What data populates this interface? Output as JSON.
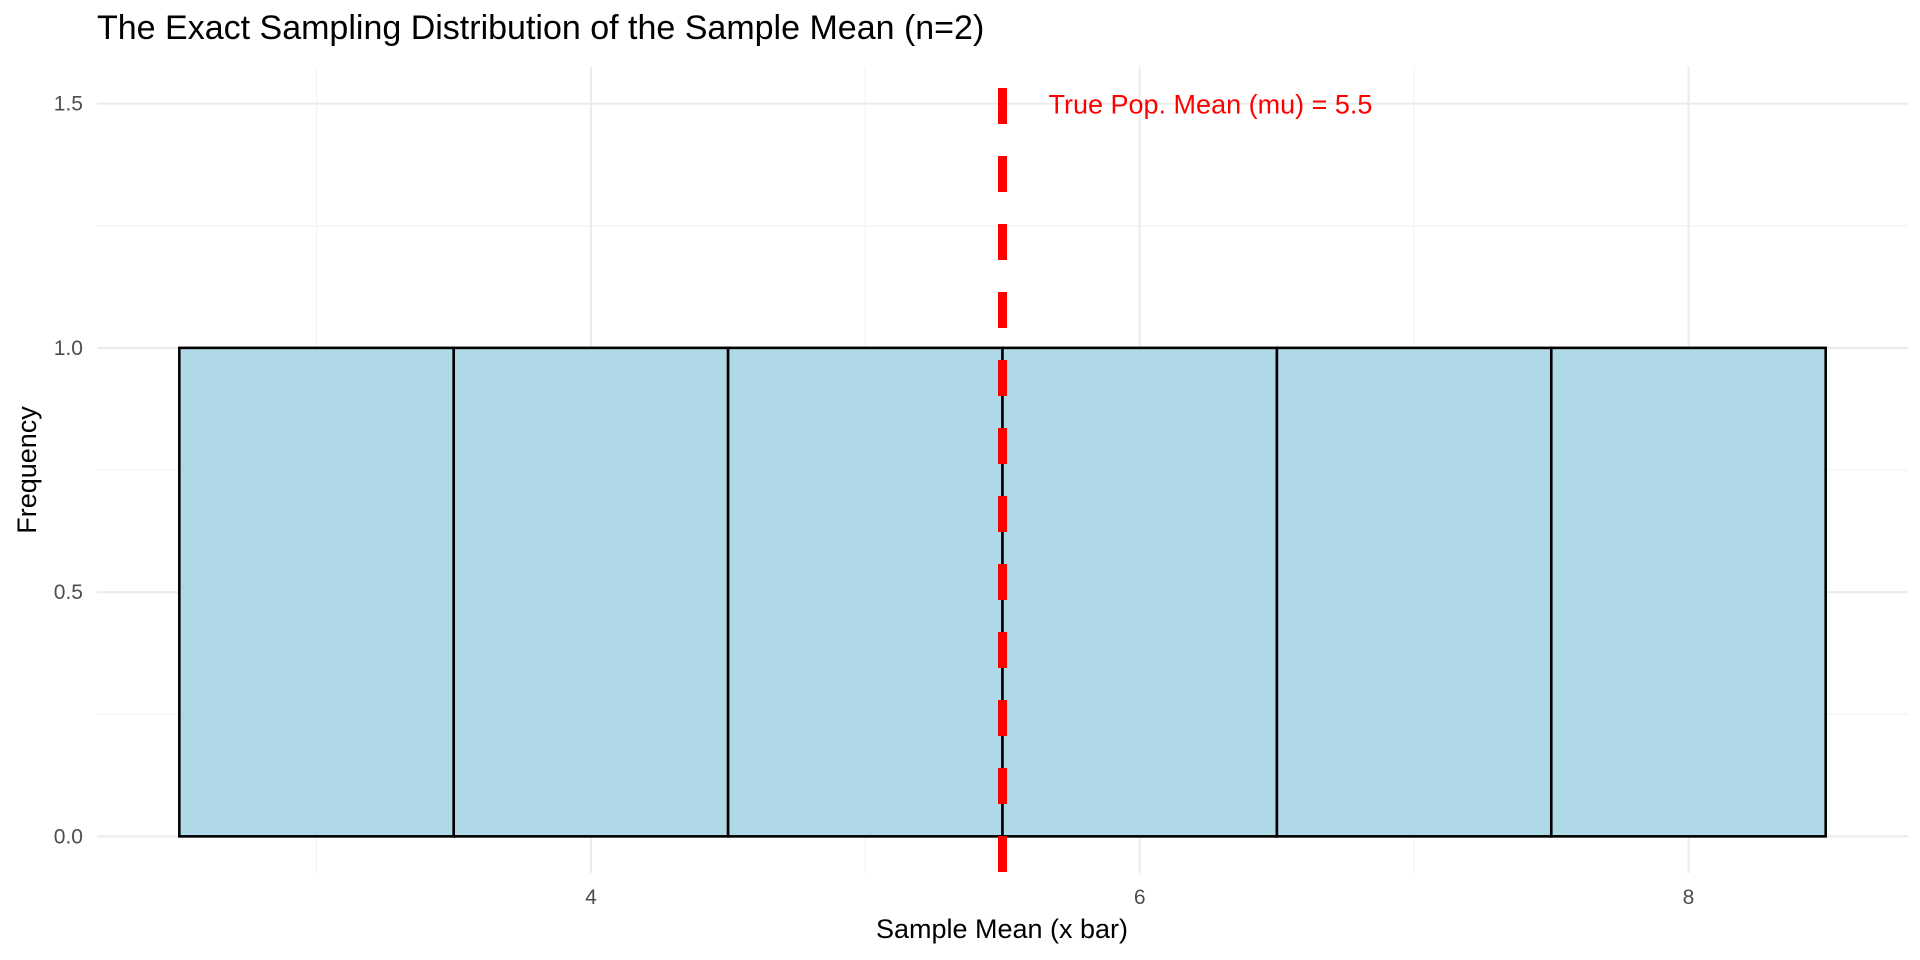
{
  "chart_data": {
    "type": "bar",
    "title": "The Exact Sampling Distribution of the Sample Mean (n=2)",
    "xlabel": "Sample Mean (x bar)",
    "ylabel": "Frequency",
    "bins": [
      {
        "x_min": 2.5,
        "x_max": 3.5,
        "value": 1
      },
      {
        "x_min": 3.5,
        "x_max": 4.5,
        "value": 1
      },
      {
        "x_min": 4.5,
        "x_max": 5.5,
        "value": 1
      },
      {
        "x_min": 5.5,
        "x_max": 6.5,
        "value": 1
      },
      {
        "x_min": 6.5,
        "x_max": 7.5,
        "value": 1
      },
      {
        "x_min": 7.5,
        "x_max": 8.5,
        "value": 1
      }
    ],
    "xlim": [
      2.2,
      8.8
    ],
    "ylim": [
      -0.075,
      1.575
    ],
    "x_ticks": [
      4,
      6,
      8
    ],
    "x_tick_labels": [
      "4",
      "6",
      "8"
    ],
    "y_ticks": [
      0,
      0.5,
      1,
      1.5
    ],
    "y_tick_labels": [
      "0.0",
      "0.5",
      "1.0",
      "1.5"
    ],
    "grid": true,
    "bar_color": "#ADD8E6",
    "reference_line": {
      "x": 5.5,
      "label": "True Pop. Mean (mu) = 5.5",
      "label_y": 1.5,
      "color": "#FF0000",
      "style": "dashed"
    }
  }
}
